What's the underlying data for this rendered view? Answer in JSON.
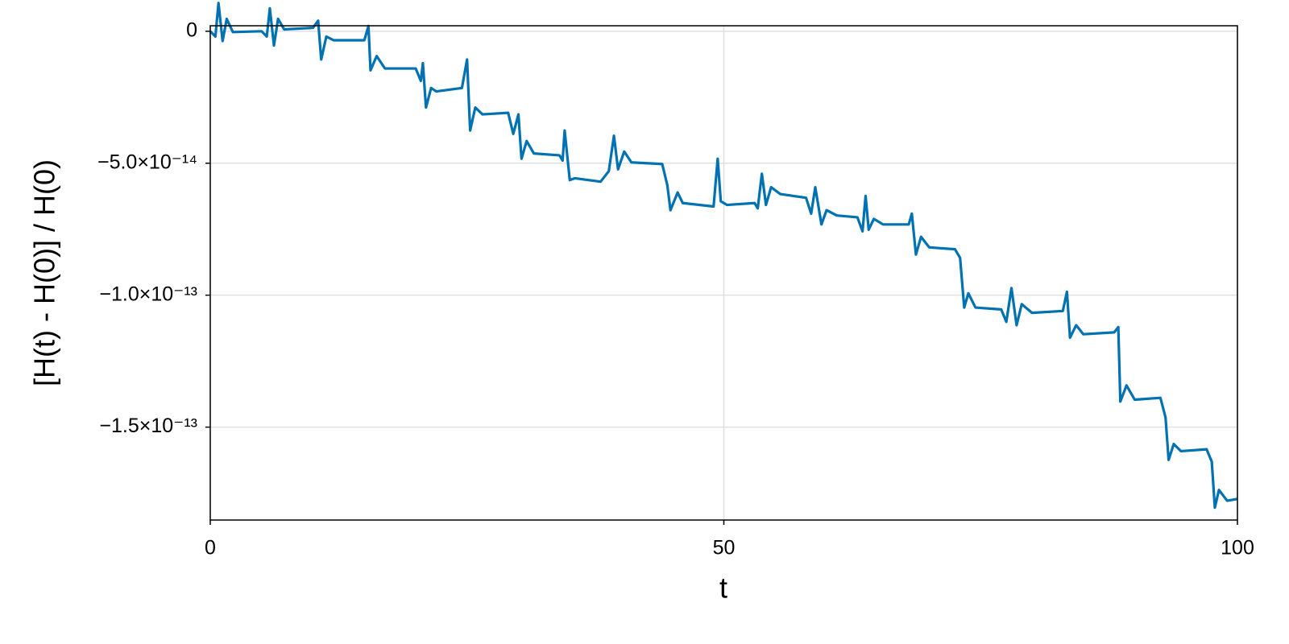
{
  "chart_data": {
    "type": "line",
    "xlabel": "t",
    "ylabel": "[H(t) - H(0)] / H(0)",
    "color": "#0072b2",
    "grid": true,
    "xlim": [
      0,
      100
    ],
    "xticks": [
      0,
      50,
      100
    ],
    "ylim": [
      -1.852e-13,
      2.08e-15
    ],
    "yticks": [
      0,
      {
        "value": -5e-14,
        "label": "−5.0×10⁻¹⁴"
      },
      {
        "value": -1e-13,
        "label": "−1.0×10⁻¹³"
      },
      {
        "value": -1.5e-13,
        "label": "−1.5×10⁻¹³"
      }
    ],
    "x": [
      0,
      0.5,
      0.8,
      1.2,
      1.6,
      2.2,
      5,
      5.5,
      5.8,
      6.2,
      6.6,
      7.2,
      10,
      10.5,
      10.8,
      11.3,
      12,
      15,
      15.4,
      15.6,
      16.2,
      17,
      20,
      20.5,
      20.7,
      21,
      21.5,
      22,
      24.5,
      25,
      25.3,
      25.8,
      26.5,
      29,
      29.5,
      30,
      30.3,
      30.8,
      31.5,
      34,
      34.3,
      34.5,
      35,
      35.5,
      38,
      38.8,
      39.3,
      39.7,
      40.3,
      41,
      44,
      44.5,
      44.8,
      45.5,
      46,
      49,
      49.4,
      49.7,
      50.3,
      53,
      53.3,
      53.7,
      54.1,
      54.6,
      55.5,
      58,
      58.5,
      58.9,
      59.5,
      60,
      61,
      63,
      63.5,
      63.8,
      64.1,
      64.6,
      65.5,
      68,
      68.3,
      68.7,
      69.2,
      70,
      72.5,
      73,
      73.4,
      73.8,
      74.5,
      77,
      77.5,
      78,
      78.5,
      79,
      80,
      83,
      83.4,
      83.7,
      84.3,
      85,
      88,
      88.4,
      88.6,
      89.2,
      90,
      92.5,
      93,
      93.3,
      93.8,
      94.5,
      97,
      97.5,
      97.8,
      98.2,
      99,
      100
    ],
    "values": [
      0,
      -2e-15,
      1.07e-14,
      -3.7e-15,
      4.7e-15,
      -3e-16,
      0,
      -2e-15,
      8.7e-15,
      -5.4e-15,
      4.7e-15,
      7e-16,
      1.3e-15,
      4e-15,
      -1.07e-14,
      -2e-15,
      -3.4e-15,
      -3.4e-15,
      2e-15,
      -1.48e-14,
      -9.4e-15,
      -1.41e-14,
      -1.41e-14,
      -1.88e-14,
      -1.21e-14,
      -2.89e-14,
      -2.15e-14,
      -2.28e-14,
      -2.15e-14,
      -1.07e-14,
      -3.76e-14,
      -2.89e-14,
      -3.15e-14,
      -3.09e-14,
      -3.89e-14,
      -3.15e-14,
      -4.83e-14,
      -4.16e-14,
      -4.63e-14,
      -4.7e-14,
      -4.9e-14,
      -3.76e-14,
      -5.64e-14,
      -5.57e-14,
      -5.7e-14,
      -5.3e-14,
      -3.96e-14,
      -5.23e-14,
      -4.56e-14,
      -4.97e-14,
      -5.03e-14,
      -5.84e-14,
      -6.78e-14,
      -6.11e-14,
      -6.51e-14,
      -6.64e-14,
      -4.83e-14,
      -6.44e-14,
      -6.58e-14,
      -6.51e-14,
      -6.71e-14,
      -5.4e-14,
      -6.58e-14,
      -5.91e-14,
      -6.17e-14,
      -6.31e-14,
      -6.91e-14,
      -5.91e-14,
      -7.32e-14,
      -6.78e-14,
      -6.98e-14,
      -7.05e-14,
      -7.58e-14,
      -6.24e-14,
      -7.52e-14,
      -7.11e-14,
      -7.32e-14,
      -7.32e-14,
      -6.91e-14,
      -8.46e-14,
      -7.79e-14,
      -8.19e-14,
      -8.26e-14,
      -8.59e-14,
      -1.047e-13,
      -9.93e-14,
      -1.047e-13,
      -1.054e-13,
      -1.101e-13,
      -9.73e-14,
      -1.114e-13,
      -1.034e-13,
      -1.067e-13,
      -1.06e-13,
      -9.87e-14,
      -1.161e-13,
      -1.114e-13,
      -1.148e-13,
      -1.141e-13,
      -1.121e-13,
      -1.403e-13,
      -1.342e-13,
      -1.396e-13,
      -1.389e-13,
      -1.463e-13,
      -1.624e-13,
      -1.564e-13,
      -1.591e-13,
      -1.584e-13,
      -1.631e-13,
      -1.805e-13,
      -1.738e-13,
      -1.779e-13,
      -1.772e-13
    ]
  }
}
